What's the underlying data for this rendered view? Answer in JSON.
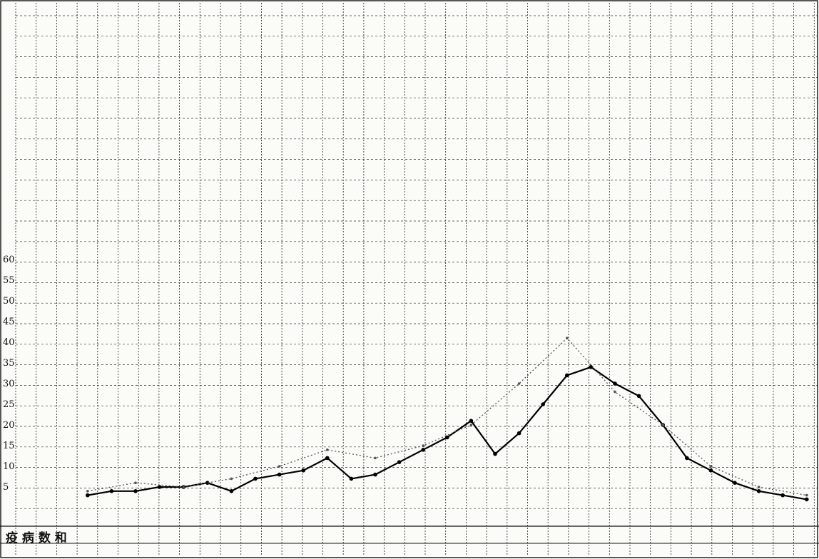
{
  "chart_data": {
    "type": "line",
    "title": "",
    "xlabel": "",
    "ylabel": "",
    "y_ticks": [
      "5",
      "10",
      "15",
      "20",
      "25",
      "30",
      "35",
      "40",
      "45",
      "50",
      "55",
      "60"
    ],
    "ylim": [
      0,
      60
    ],
    "row_label": "疫 病 数 和",
    "grid": "on",
    "series": [
      {
        "style": "solid",
        "x": [
          9,
          12,
          15,
          18,
          21,
          24,
          27,
          30,
          33,
          36,
          39,
          42,
          45,
          48,
          51,
          54,
          57,
          60,
          63,
          66,
          69,
          72,
          75,
          78,
          81,
          84,
          87,
          90,
          93,
          96,
          99
        ],
        "y": [
          3,
          4,
          4,
          5,
          5,
          6,
          4,
          7,
          8,
          9,
          12,
          7,
          8,
          11,
          14,
          17,
          21,
          13,
          18,
          25,
          32,
          34,
          30,
          27,
          20,
          12,
          9,
          6,
          4,
          3,
          2
        ]
      },
      {
        "style": "dotted",
        "x": [
          9,
          15,
          21,
          27,
          33,
          39,
          45,
          51,
          57,
          63,
          69,
          75,
          81,
          87,
          93,
          99
        ],
        "y": [
          4,
          6,
          5,
          7,
          10,
          14,
          12,
          15,
          20,
          30,
          41,
          28,
          20,
          10,
          5,
          3
        ]
      }
    ]
  }
}
